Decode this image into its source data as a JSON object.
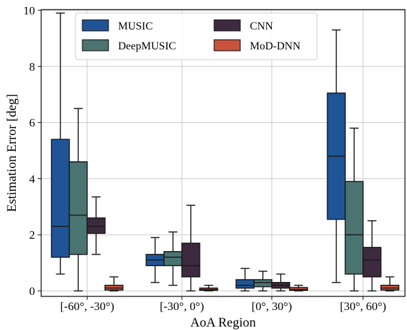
{
  "chart_data": {
    "type": "box",
    "xlabel": "AoA Region",
    "ylabel": "Estimation Error [deg]",
    "ylim": [
      0,
      10
    ],
    "yticks": [
      0,
      2,
      4,
      6,
      8,
      10
    ],
    "grid": true,
    "legend_placement": "top-center",
    "legend_columns": 2,
    "categories": [
      "[-60°, -30°)",
      "[-30°, 0°)",
      "[0°, 30°)",
      "[30°, 60°)"
    ],
    "series": [
      {
        "name": "MUSIC",
        "color": "#1f5597",
        "boxes": [
          {
            "whislo": 0.6,
            "q1": 1.2,
            "med": 2.3,
            "q3": 5.4,
            "whishi": 9.9
          },
          {
            "whislo": 0.3,
            "q1": 0.9,
            "med": 1.1,
            "q3": 1.3,
            "whishi": 1.9
          },
          {
            "whislo": 0.0,
            "q1": 0.1,
            "med": 0.2,
            "q3": 0.4,
            "whishi": 0.8
          },
          {
            "whislo": 0.3,
            "q1": 2.55,
            "med": 4.8,
            "q3": 7.05,
            "whishi": 9.3
          }
        ]
      },
      {
        "name": "DeepMUSIC",
        "color": "#4a7471",
        "boxes": [
          {
            "whislo": 0.0,
            "q1": 1.3,
            "med": 2.7,
            "q3": 4.6,
            "whishi": 6.5
          },
          {
            "whislo": 0.2,
            "q1": 0.9,
            "med": 1.2,
            "q3": 1.4,
            "whishi": 2.1
          },
          {
            "whislo": 0.0,
            "q1": 0.15,
            "med": 0.3,
            "q3": 0.4,
            "whishi": 0.7
          },
          {
            "whislo": 0.0,
            "q1": 0.6,
            "med": 2.0,
            "q3": 3.9,
            "whishi": 5.8
          }
        ]
      },
      {
        "name": "CNN",
        "color": "#3d2a3e",
        "boxes": [
          {
            "whislo": 1.3,
            "q1": 2.05,
            "med": 2.3,
            "q3": 2.6,
            "whishi": 3.35
          },
          {
            "whislo": 0.0,
            "q1": 0.5,
            "med": 0.9,
            "q3": 1.7,
            "whishi": 3.05
          },
          {
            "whislo": 0.0,
            "q1": 0.1,
            "med": 0.2,
            "q3": 0.3,
            "whishi": 0.6
          },
          {
            "whislo": 0.0,
            "q1": 0.5,
            "med": 1.1,
            "q3": 1.55,
            "whishi": 2.5
          }
        ]
      },
      {
        "name": "MoD-DNN",
        "color": "#c9523b",
        "boxes": [
          {
            "whislo": 0.0,
            "q1": 0.03,
            "med": 0.1,
            "q3": 0.2,
            "whishi": 0.5
          },
          {
            "whislo": 0.0,
            "q1": 0.02,
            "med": 0.05,
            "q3": 0.1,
            "whishi": 0.2
          },
          {
            "whislo": 0.0,
            "q1": 0.02,
            "med": 0.05,
            "q3": 0.12,
            "whishi": 0.2
          },
          {
            "whislo": 0.0,
            "q1": 0.03,
            "med": 0.1,
            "q3": 0.2,
            "whishi": 0.5
          }
        ]
      }
    ]
  }
}
